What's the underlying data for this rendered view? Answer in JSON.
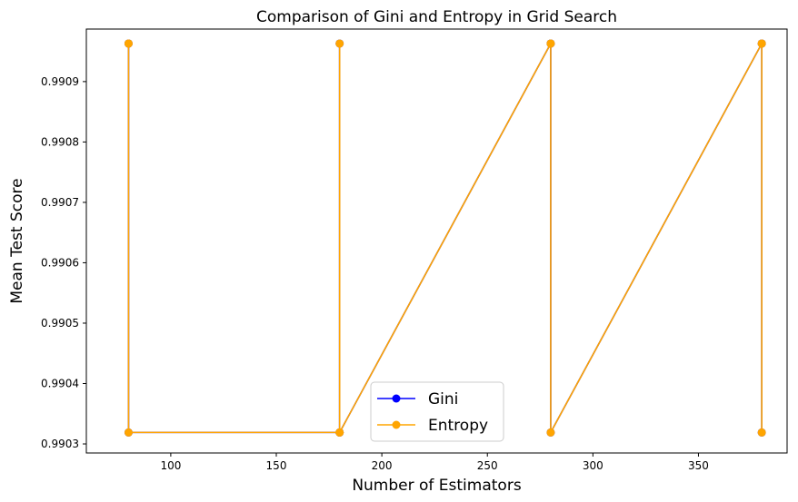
{
  "chart_data": {
    "type": "line",
    "title": "Comparison of Gini and Entropy in Grid Search",
    "xlabel": "Number of Estimators",
    "ylabel": "Mean Test Score",
    "xlim": [
      60,
      392
    ],
    "ylim": [
      0.990285,
      0.990987
    ],
    "x_ticks": [
      100,
      150,
      200,
      250,
      300,
      350
    ],
    "x_tick_labels": [
      "100",
      "150",
      "200",
      "250",
      "300",
      "350"
    ],
    "y_ticks": [
      0.9903,
      0.9904,
      0.9905,
      0.9906,
      0.9907,
      0.9908,
      0.9909
    ],
    "y_tick_labels": [
      "0.9903",
      "0.9904",
      "0.9905",
      "0.9906",
      "0.9907",
      "0.9908",
      "0.9909"
    ],
    "grid": false,
    "legend_position": "lower-center",
    "series": [
      {
        "name": "Gini",
        "color": "#0000ff",
        "marker": "circle",
        "x": [
          80,
          80,
          80,
          180,
          180,
          180,
          280,
          280,
          280,
          380,
          380,
          380
        ],
        "y": [
          0.990963,
          0.990963,
          0.990319,
          0.990319,
          0.990963,
          0.990319,
          0.990963,
          0.990963,
          0.990319,
          0.990963,
          0.990963,
          0.990319
        ]
      },
      {
        "name": "Entropy",
        "color": "#ffa500",
        "marker": "circle",
        "x": [
          80,
          80,
          80,
          180,
          180,
          180,
          280,
          280,
          280,
          380,
          380,
          380
        ],
        "y": [
          0.990963,
          0.990963,
          0.990319,
          0.990319,
          0.990963,
          0.990319,
          0.990963,
          0.990963,
          0.990319,
          0.990963,
          0.990963,
          0.990319
        ]
      }
    ]
  }
}
